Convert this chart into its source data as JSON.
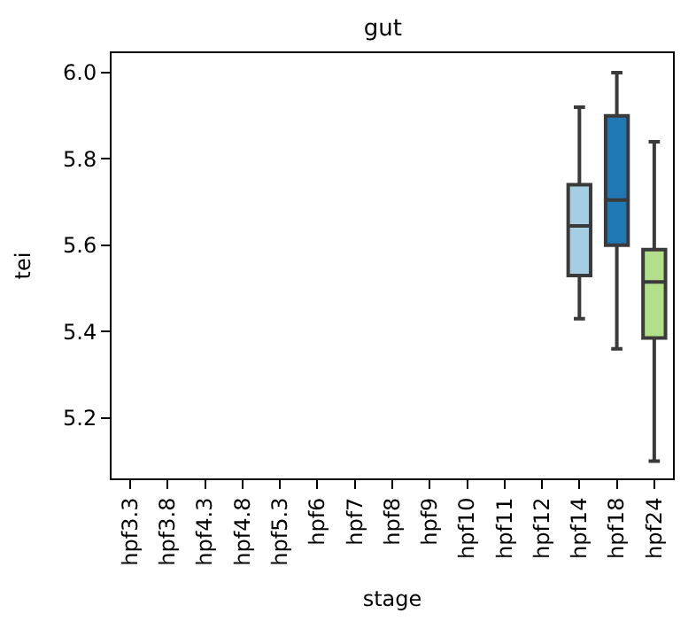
{
  "chart_data": {
    "type": "box",
    "title": "gut",
    "xlabel": "stage",
    "ylabel": "tei",
    "categories": [
      "hpf3.3",
      "hpf3.8",
      "hpf4.3",
      "hpf4.8",
      "hpf5.3",
      "hpf6",
      "hpf7",
      "hpf8",
      "hpf9",
      "hpf10",
      "hpf11",
      "hpf12",
      "hpf14",
      "hpf18",
      "hpf24"
    ],
    "boxes": [
      null,
      null,
      null,
      null,
      null,
      null,
      null,
      null,
      null,
      null,
      null,
      null,
      {
        "low": 5.43,
        "q1": 5.53,
        "median": 5.645,
        "q3": 5.74,
        "high": 5.92
      },
      {
        "low": 5.36,
        "q1": 5.6,
        "median": 5.705,
        "q3": 5.9,
        "high": 6.0
      },
      {
        "low": 5.1,
        "q1": 5.385,
        "median": 5.515,
        "q3": 5.59,
        "high": 5.84
      }
    ],
    "colors": [
      "#a6cee3",
      "#a6cee3",
      "#a6cee3",
      "#a6cee3",
      "#a6cee3",
      "#a6cee3",
      "#a6cee3",
      "#a6cee3",
      "#a6cee3",
      "#a6cee3",
      "#a6cee3",
      "#a6cee3",
      "#a6cee3",
      "#1f78b4",
      "#b2df8a"
    ],
    "ylim": [
      5.06,
      6.045
    ],
    "yticks": [
      {
        "value": 5.2,
        "label": "5.2"
      },
      {
        "value": 5.4,
        "label": "5.4"
      },
      {
        "value": 5.6,
        "label": "5.6"
      },
      {
        "value": 5.8,
        "label": "5.8"
      },
      {
        "value": 6.0,
        "label": "6.0"
      }
    ]
  }
}
